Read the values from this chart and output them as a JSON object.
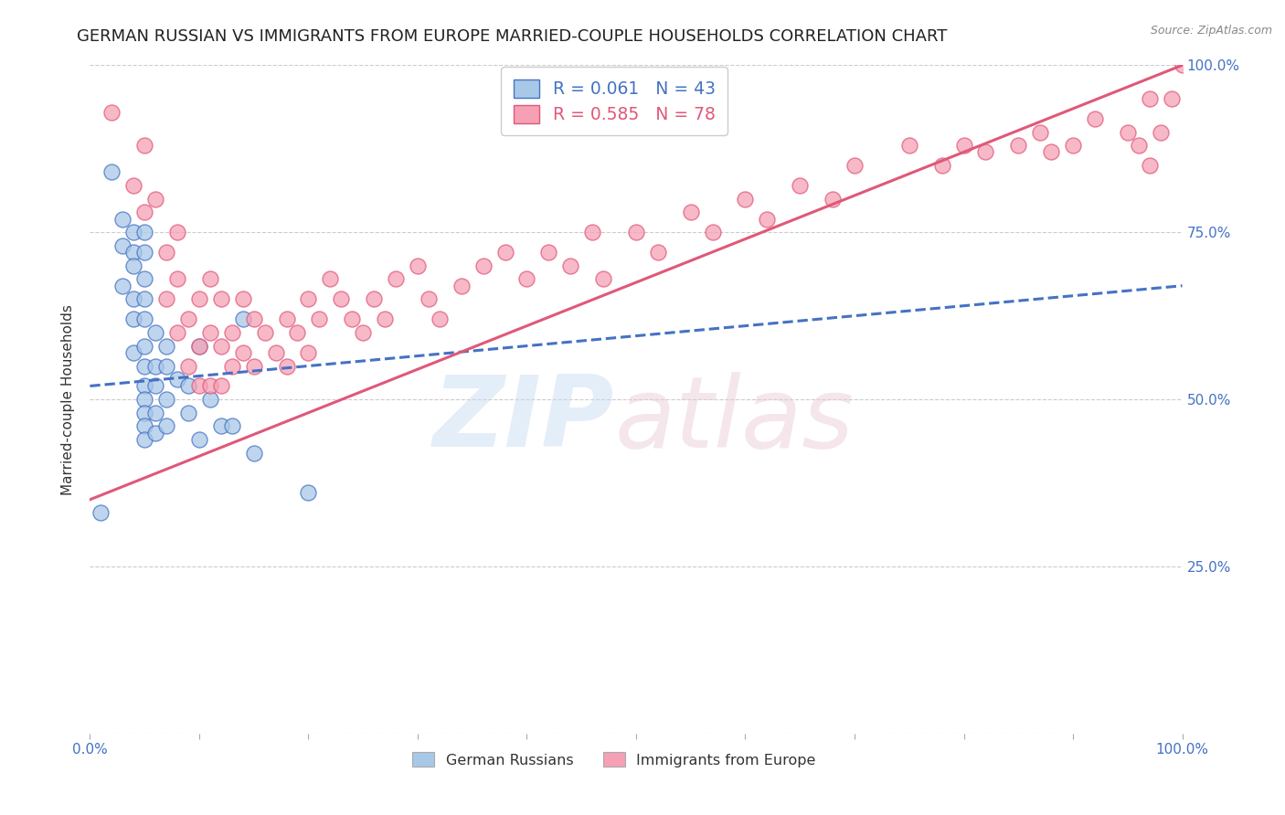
{
  "title": "GERMAN RUSSIAN VS IMMIGRANTS FROM EUROPE MARRIED-COUPLE HOUSEHOLDS CORRELATION CHART",
  "source": "Source: ZipAtlas.com",
  "ylabel": "Married-couple Households",
  "xlim": [
    0,
    1
  ],
  "ylim": [
    0,
    1
  ],
  "xticks": [
    0.0,
    0.1,
    0.2,
    0.3,
    0.4,
    0.5,
    0.6,
    0.7,
    0.8,
    0.9,
    1.0
  ],
  "xticklabels": [
    "0.0%",
    "",
    "",
    "",
    "",
    "",
    "",
    "",
    "",
    "",
    "100.0%"
  ],
  "yticks": [
    0.0,
    0.25,
    0.5,
    0.75,
    1.0
  ],
  "yticklabels_right": [
    "",
    "25.0%",
    "50.0%",
    "75.0%",
    "100.0%"
  ],
  "blue_R": "0.061",
  "blue_N": "43",
  "pink_R": "0.585",
  "pink_N": "78",
  "legend_label_blue": "German Russians",
  "legend_label_pink": "Immigrants from Europe",
  "blue_color": "#a8c8e8",
  "pink_color": "#f5a0b5",
  "blue_line_color": "#4472c4",
  "pink_line_color": "#e05878",
  "blue_scatter_x": [
    0.01,
    0.02,
    0.03,
    0.03,
    0.03,
    0.04,
    0.04,
    0.04,
    0.04,
    0.04,
    0.04,
    0.05,
    0.05,
    0.05,
    0.05,
    0.05,
    0.05,
    0.05,
    0.05,
    0.05,
    0.05,
    0.05,
    0.05,
    0.06,
    0.06,
    0.06,
    0.06,
    0.06,
    0.07,
    0.07,
    0.07,
    0.07,
    0.08,
    0.09,
    0.09,
    0.1,
    0.1,
    0.11,
    0.12,
    0.13,
    0.14,
    0.15,
    0.2
  ],
  "blue_scatter_y": [
    0.33,
    0.84,
    0.77,
    0.73,
    0.67,
    0.75,
    0.72,
    0.7,
    0.65,
    0.62,
    0.57,
    0.75,
    0.72,
    0.68,
    0.65,
    0.62,
    0.58,
    0.55,
    0.52,
    0.5,
    0.48,
    0.46,
    0.44,
    0.6,
    0.55,
    0.52,
    0.48,
    0.45,
    0.58,
    0.55,
    0.5,
    0.46,
    0.53,
    0.52,
    0.48,
    0.58,
    0.44,
    0.5,
    0.46,
    0.46,
    0.62,
    0.42,
    0.36
  ],
  "pink_scatter_x": [
    0.02,
    0.04,
    0.05,
    0.05,
    0.06,
    0.07,
    0.07,
    0.08,
    0.08,
    0.08,
    0.09,
    0.09,
    0.1,
    0.1,
    0.1,
    0.11,
    0.11,
    0.11,
    0.12,
    0.12,
    0.12,
    0.13,
    0.13,
    0.14,
    0.14,
    0.15,
    0.15,
    0.16,
    0.17,
    0.18,
    0.18,
    0.19,
    0.2,
    0.2,
    0.21,
    0.22,
    0.23,
    0.24,
    0.25,
    0.26,
    0.27,
    0.28,
    0.3,
    0.31,
    0.32,
    0.34,
    0.36,
    0.38,
    0.4,
    0.42,
    0.44,
    0.46,
    0.47,
    0.5,
    0.52,
    0.55,
    0.57,
    0.6,
    0.62,
    0.65,
    0.68,
    0.7,
    0.75,
    0.78,
    0.8,
    0.82,
    0.85,
    0.87,
    0.88,
    0.9,
    0.92,
    0.95,
    0.96,
    0.97,
    0.97,
    0.98,
    0.99,
    1.0
  ],
  "pink_scatter_y": [
    0.93,
    0.82,
    0.88,
    0.78,
    0.8,
    0.72,
    0.65,
    0.75,
    0.68,
    0.6,
    0.62,
    0.55,
    0.65,
    0.58,
    0.52,
    0.68,
    0.6,
    0.52,
    0.65,
    0.58,
    0.52,
    0.6,
    0.55,
    0.65,
    0.57,
    0.62,
    0.55,
    0.6,
    0.57,
    0.62,
    0.55,
    0.6,
    0.65,
    0.57,
    0.62,
    0.68,
    0.65,
    0.62,
    0.6,
    0.65,
    0.62,
    0.68,
    0.7,
    0.65,
    0.62,
    0.67,
    0.7,
    0.72,
    0.68,
    0.72,
    0.7,
    0.75,
    0.68,
    0.75,
    0.72,
    0.78,
    0.75,
    0.8,
    0.77,
    0.82,
    0.8,
    0.85,
    0.88,
    0.85,
    0.88,
    0.87,
    0.88,
    0.9,
    0.87,
    0.88,
    0.92,
    0.9,
    0.88,
    0.95,
    0.85,
    0.9,
    0.95,
    1.0
  ],
  "blue_trendline": [
    0.0,
    1.0,
    0.52,
    0.67
  ],
  "pink_trendline": [
    0.0,
    1.0,
    0.35,
    1.0
  ],
  "background_color": "#ffffff",
  "grid_color": "#cccccc",
  "title_color": "#222222",
  "axis_label_color": "#4472c4",
  "title_fontsize": 13,
  "label_fontsize": 11,
  "tick_fontsize": 11,
  "source_text": "Source: ZipAtlas.com"
}
